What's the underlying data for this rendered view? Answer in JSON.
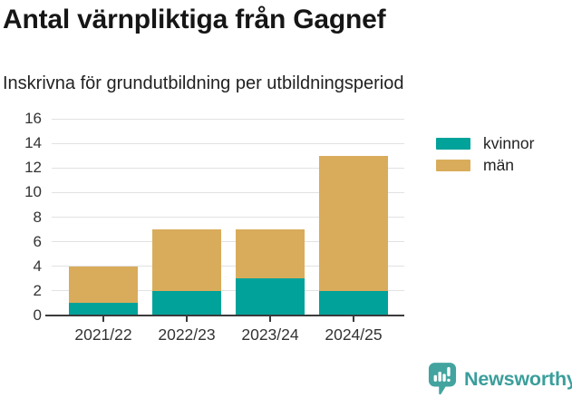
{
  "header": {
    "title": "Antal värnpliktiga från Gagnef",
    "subtitle": "Inskrivna för grundutbildning per utbildningsperiod"
  },
  "chart_data": {
    "type": "bar",
    "stacked": true,
    "title": "Antal värnpliktiga från Gagnef",
    "subtitle": "Inskrivna för grundutbildning per utbildningsperiod",
    "categories": [
      "2021/22",
      "2022/23",
      "2023/24",
      "2024/25"
    ],
    "series": [
      {
        "name": "kvinnor",
        "color": "#00A29A",
        "values": [
          1,
          2,
          3,
          2
        ]
      },
      {
        "name": "män",
        "color": "#D9AC5C",
        "values": [
          3,
          5,
          4,
          11
        ]
      }
    ],
    "totals": [
      4,
      7,
      7,
      13
    ],
    "xlabel": "",
    "ylabel": "",
    "ylim": [
      0,
      16
    ],
    "ytick_step": 2,
    "grid": true,
    "legend_position": "right-top"
  },
  "footer": {
    "brand": "Newsworthy",
    "brand_color": "#3a9e9b",
    "logo_color": "#43a49f"
  }
}
